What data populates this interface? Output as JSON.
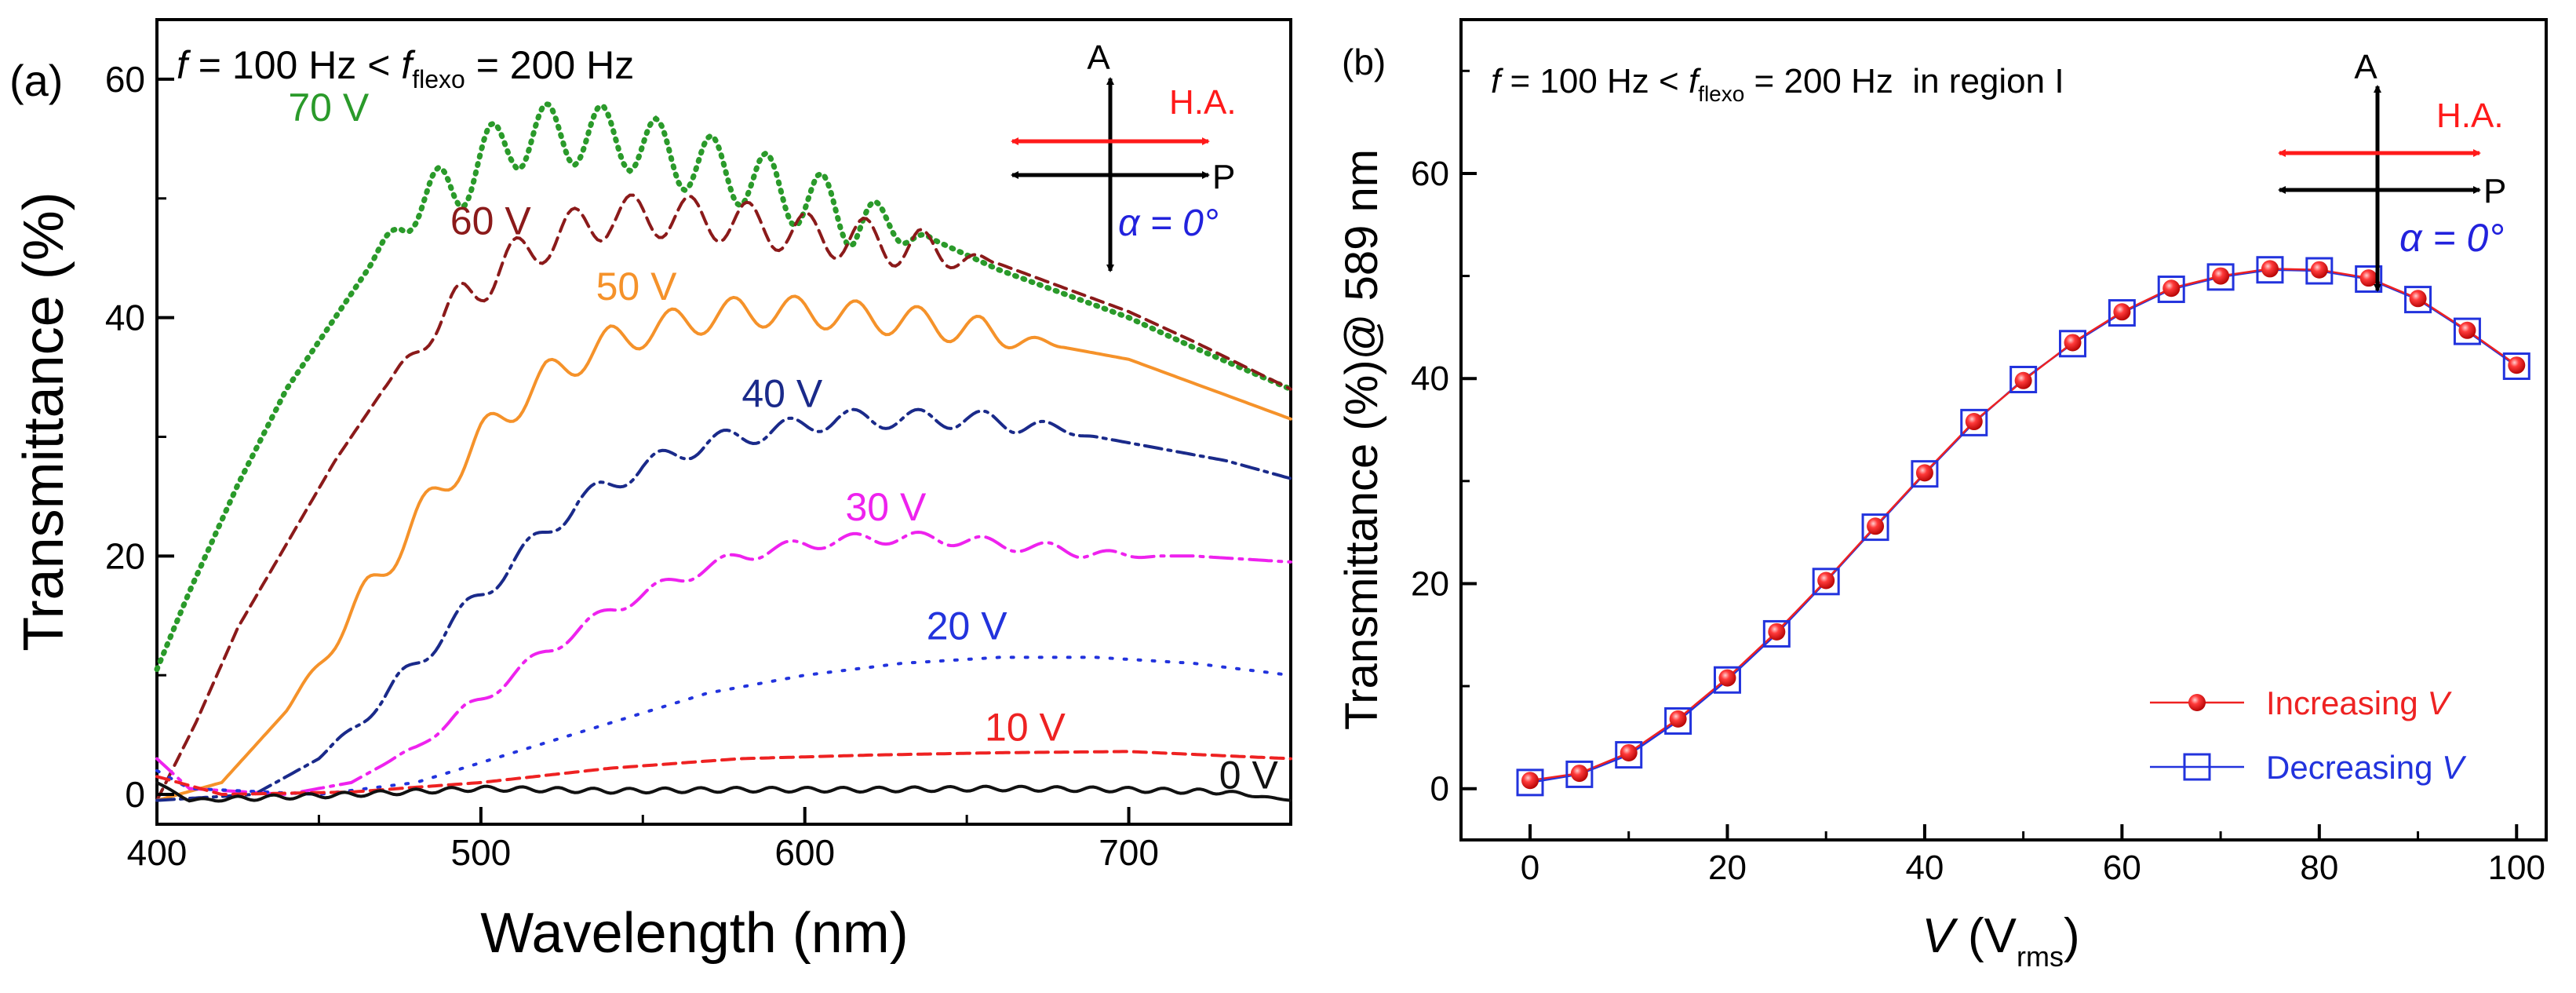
{
  "chart_data": [
    {
      "panel": "(a)",
      "type": "line",
      "title": "f = 100 Hz < f_flexo = 200 Hz",
      "title_parts": {
        "f1": "f",
        "eq1": " = 100 Hz < ",
        "f2": "f",
        "sub": "flexo",
        "eq2": " = 200 Hz"
      },
      "xlabel": "Wavelength (nm)",
      "ylabel": "Transmittance (%)",
      "xlim": [
        400,
        750
      ],
      "ylim": [
        -2.5,
        65
      ],
      "xticks": [
        400,
        500,
        600,
        700
      ],
      "yticks": [
        0,
        20,
        40,
        60
      ],
      "inset": {
        "A": "A",
        "P": "P",
        "HA": "H.A.",
        "alpha": "α = 0°"
      },
      "series": [
        {
          "name": "70 V",
          "color": "#2a9a2a",
          "style": "dotted",
          "points": [
            [
              400,
              10.5
            ],
            [
              410,
              17
            ],
            [
              425,
              26
            ],
            [
              440,
              34
            ],
            [
              455,
              40
            ],
            [
              465,
              44
            ],
            [
              475,
              48
            ],
            [
              485,
              50
            ],
            [
              500,
              53
            ],
            [
              510,
              55
            ],
            [
              525,
              55.5
            ],
            [
              545,
              55
            ],
            [
              560,
              53.5
            ],
            [
              580,
              52
            ],
            [
              600,
              50
            ],
            [
              620,
              48
            ],
            [
              640,
              46.5
            ],
            [
              660,
              44
            ],
            [
              680,
              42
            ],
            [
              700,
              40
            ],
            [
              720,
              37.5
            ],
            [
              750,
              34
            ]
          ],
          "ripple": {
            "amp": 2.6,
            "period": 17,
            "start": 465,
            "end": 640
          }
        },
        {
          "name": "60 V",
          "color": "#8b1a1a",
          "style": "dashed",
          "points": [
            [
              400,
              -0.5
            ],
            [
              412,
              6
            ],
            [
              425,
              14
            ],
            [
              440,
              21
            ],
            [
              455,
              28
            ],
            [
              470,
              34
            ],
            [
              485,
              39
            ],
            [
              500,
              43
            ],
            [
              520,
              46.5
            ],
            [
              540,
              48.5
            ],
            [
              560,
              48.5
            ],
            [
              580,
              48
            ],
            [
              600,
              47
            ],
            [
              620,
              46.5
            ],
            [
              640,
              45.5
            ],
            [
              660,
              44.5
            ],
            [
              680,
              42.5
            ],
            [
              700,
              40.5
            ],
            [
              720,
              38
            ],
            [
              750,
              34
            ]
          ],
          "ripple": {
            "amp": 1.8,
            "period": 18,
            "start": 470,
            "end": 660
          }
        },
        {
          "name": "50 V",
          "color": "#f5922a",
          "style": "solid",
          "points": [
            [
              400,
              -0.5
            ],
            [
              420,
              1
            ],
            [
              440,
              7
            ],
            [
              460,
              15
            ],
            [
              480,
              23
            ],
            [
              500,
              30
            ],
            [
              520,
              35
            ],
            [
              540,
              38
            ],
            [
              560,
              39.5
            ],
            [
              580,
              40.5
            ],
            [
              600,
              40.5
            ],
            [
              620,
              40
            ],
            [
              640,
              39.5
            ],
            [
              660,
              38.5
            ],
            [
              680,
              37.5
            ],
            [
              700,
              36.5
            ],
            [
              720,
              34.5
            ],
            [
              750,
              31.5
            ]
          ],
          "ripple": {
            "amp": 1.3,
            "period": 19,
            "start": 440,
            "end": 680
          }
        },
        {
          "name": "40 V",
          "color": "#1a2a8a",
          "style": "dashdot",
          "points": [
            [
              400,
              -0.5
            ],
            [
              430,
              0
            ],
            [
              450,
              3
            ],
            [
              470,
              8
            ],
            [
              490,
              14
            ],
            [
              510,
              19.5
            ],
            [
              530,
              24.5
            ],
            [
              550,
              27.5
            ],
            [
              570,
              29.5
            ],
            [
              590,
              30.5
            ],
            [
              610,
              31.5
            ],
            [
              630,
              31.5
            ],
            [
              650,
              31.5
            ],
            [
              670,
              31
            ],
            [
              690,
              30
            ],
            [
              710,
              29
            ],
            [
              730,
              28
            ],
            [
              750,
              26.5
            ]
          ],
          "ripple": {
            "amp": 0.8,
            "period": 20,
            "start": 450,
            "end": 690
          }
        },
        {
          "name": "30 V",
          "color": "#ee22ee",
          "style": "dashdotlong",
          "points": [
            [
              400,
              3
            ],
            [
              410,
              0.5
            ],
            [
              440,
              0
            ],
            [
              460,
              1
            ],
            [
              480,
              4
            ],
            [
              500,
              8
            ],
            [
              520,
              12
            ],
            [
              540,
              15.5
            ],
            [
              560,
              18
            ],
            [
              580,
              20
            ],
            [
              600,
              21
            ],
            [
              620,
              21.5
            ],
            [
              640,
              21.5
            ],
            [
              660,
              21
            ],
            [
              680,
              20.5
            ],
            [
              700,
              20
            ],
            [
              720,
              20
            ],
            [
              750,
              19.5
            ]
          ],
          "ripple": {
            "amp": 0.5,
            "period": 20,
            "start": 470,
            "end": 710
          }
        },
        {
          "name": "20 V",
          "color": "#2233dd",
          "style": "sparsedot",
          "points": [
            [
              400,
              2
            ],
            [
              410,
              0.5
            ],
            [
              450,
              0
            ],
            [
              480,
              1
            ],
            [
              510,
              3.5
            ],
            [
              540,
              6
            ],
            [
              570,
              8.5
            ],
            [
              600,
              10
            ],
            [
              630,
              11
            ],
            [
              660,
              11.5
            ],
            [
              690,
              11.5
            ],
            [
              720,
              11
            ],
            [
              750,
              10
            ]
          ]
        },
        {
          "name": "10 V",
          "color": "#ee2222",
          "style": "dashed",
          "points": [
            [
              400,
              1.5
            ],
            [
              420,
              0
            ],
            [
              460,
              0.2
            ],
            [
              500,
              1
            ],
            [
              540,
              2.2
            ],
            [
              580,
              3
            ],
            [
              620,
              3.3
            ],
            [
              660,
              3.5
            ],
            [
              700,
              3.6
            ],
            [
              750,
              3
            ]
          ]
        },
        {
          "name": "0 V",
          "color": "#111111",
          "style": "solid",
          "points": [
            [
              400,
              1
            ],
            [
              410,
              -0.5
            ],
            [
              430,
              -0.3
            ],
            [
              460,
              0
            ],
            [
              500,
              0.5
            ],
            [
              540,
              0.3
            ],
            [
              580,
              0.4
            ],
            [
              620,
              0.4
            ],
            [
              660,
              0.5
            ],
            [
              700,
              0.4
            ],
            [
              730,
              0.2
            ],
            [
              750,
              -0.5
            ]
          ],
          "ripple": {
            "amp": 0.2,
            "period": 11,
            "start": 400,
            "end": 750
          }
        }
      ],
      "labels": [
        {
          "text": "70 V",
          "x": 453,
          "y": 56.5,
          "color": "#2a9a2a"
        },
        {
          "text": "60 V",
          "x": 503,
          "y": 47,
          "color": "#8b1a1a"
        },
        {
          "text": "50 V",
          "x": 548,
          "y": 41.5,
          "color": "#f5922a"
        },
        {
          "text": "40 V",
          "x": 593,
          "y": 32.5,
          "color": "#1a2a8a"
        },
        {
          "text": "30 V",
          "x": 625,
          "y": 23,
          "color": "#ee22ee"
        },
        {
          "text": "20 V",
          "x": 650,
          "y": 13,
          "color": "#2233dd"
        },
        {
          "text": "10 V",
          "x": 668,
          "y": 4.5,
          "color": "#ee2222"
        },
        {
          "text": "0 V",
          "x": 737,
          "y": 0.5,
          "color": "#111111"
        }
      ]
    },
    {
      "panel": "(b)",
      "type": "scatter",
      "title": "f = 100 Hz < f_flexo = 200 Hz  in region I",
      "title_parts": {
        "f1": "f",
        "eq1": " = 100 Hz < ",
        "f2": "f",
        "sub": "flexo",
        "eq2": " = 200 Hz  in region I"
      },
      "xlabel": "V (V_rms)",
      "xlabel_parts": {
        "v": "V",
        "open": " (V",
        "sub": "rms",
        "close": ")"
      },
      "ylabel": "Transmittance (%)@ 589 nm",
      "xlim": [
        -7,
        103
      ],
      "ylim": [
        -5,
        75
      ],
      "xticks": [
        0,
        20,
        40,
        60,
        80,
        100
      ],
      "yticks": [
        0,
        20,
        40,
        60
      ],
      "inset": {
        "A": "A",
        "P": "P",
        "HA": "H.A.",
        "alpha": "α = 0°"
      },
      "legend": {
        "items": [
          {
            "label": "Increasing ",
            "var": "V",
            "color": "#ee2222"
          },
          {
            "label": "Decreasing ",
            "var": "V",
            "color": "#2233dd"
          }
        ]
      },
      "x": [
        0,
        5,
        10,
        15,
        20,
        25,
        30,
        35,
        40,
        45,
        50,
        55,
        60,
        65,
        70,
        75,
        80,
        85,
        90,
        95,
        100
      ],
      "series": [
        {
          "name": "Increasing V",
          "color": "#ee2222",
          "marker": "circle",
          "values": [
            0.8,
            1.5,
            3.5,
            6.8,
            10.8,
            15.3,
            20.3,
            25.6,
            30.8,
            35.8,
            39.8,
            43.5,
            46.5,
            48.8,
            50.0,
            50.7,
            50.6,
            49.8,
            47.8,
            44.7,
            41.3
          ]
        },
        {
          "name": "Decreasing V",
          "color": "#2233dd",
          "marker": "square",
          "values": [
            0.6,
            1.4,
            3.3,
            6.6,
            10.6,
            15.1,
            20.2,
            25.5,
            30.7,
            35.7,
            39.9,
            43.4,
            46.4,
            48.7,
            49.9,
            50.6,
            50.5,
            49.7,
            47.7,
            44.6,
            41.2
          ]
        }
      ]
    }
  ]
}
